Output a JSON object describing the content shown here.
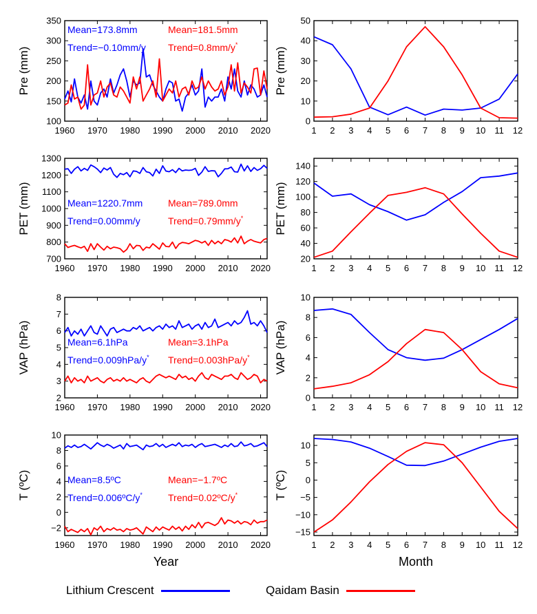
{
  "colors": {
    "lithium": "#0000ff",
    "qaidam": "#ff0000"
  },
  "legend": {
    "lithium": "Lithium Crescent",
    "qaidam": "Qaidam Basin"
  },
  "chart_data": [
    {
      "type": "line",
      "xlabel": "",
      "ylabel": "Pre (mm)",
      "xlim": [
        1960,
        2022
      ],
      "xticks": [
        1960,
        1970,
        1980,
        1990,
        2000,
        2010,
        2020
      ],
      "ylim": [
        100,
        350
      ],
      "yticks": [
        100,
        150,
        200,
        250,
        300,
        350
      ],
      "annotations": {
        "lithium_mean": "Mean=173.8mm",
        "lithium_trend": "Trend=−0.10mm/y",
        "qaidam_mean": "Mean=181.5mm",
        "qaidam_trend": "Trend=0.8mm/y",
        "qaidam_trend_sup": "*"
      },
      "series": [
        {
          "name": "Lithium Crescent",
          "start": 1960,
          "values": [
            155,
            175,
            148,
            205,
            160,
            145,
            165,
            130,
            200,
            150,
            140,
            170,
            180,
            160,
            205,
            170,
            190,
            215,
            230,
            200,
            160,
            200,
            190,
            195,
            280,
            210,
            215,
            190,
            175,
            160,
            150,
            180,
            200,
            195,
            150,
            155,
            125,
            160,
            170,
            190,
            165,
            175,
            230,
            135,
            160,
            150,
            160,
            160,
            180,
            150,
            210,
            180,
            230,
            175,
            160,
            200,
            165,
            190,
            180,
            160,
            165,
            190,
            160
          ]
        },
        {
          "name": "Qaidam Basin",
          "start": 1960,
          "values": [
            140,
            145,
            190,
            155,
            160,
            130,
            140,
            240,
            140,
            165,
            170,
            200,
            160,
            185,
            195,
            165,
            160,
            185,
            175,
            160,
            145,
            210,
            180,
            210,
            150,
            165,
            180,
            200,
            160,
            255,
            150,
            165,
            180,
            170,
            200,
            160,
            180,
            185,
            165,
            200,
            180,
            185,
            210,
            180,
            200,
            185,
            175,
            180,
            200,
            165,
            185,
            240,
            175,
            245,
            170,
            195,
            185,
            170,
            230,
            232,
            165,
            225,
            180
          ]
        }
      ]
    },
    {
      "type": "line",
      "xlabel": "",
      "ylabel": "Pre (mm)",
      "xlim": [
        1,
        12
      ],
      "xticks": [
        1,
        2,
        3,
        4,
        5,
        6,
        7,
        8,
        9,
        10,
        11,
        12
      ],
      "ylim": [
        0,
        50
      ],
      "yticks": [
        0,
        10,
        20,
        30,
        40,
        50
      ],
      "categories": [
        1,
        2,
        3,
        4,
        5,
        6,
        7,
        8,
        9,
        10,
        11,
        12
      ],
      "series": [
        {
          "name": "Lithium Crescent",
          "values": [
            42,
            38,
            26,
            7,
            3.2,
            7,
            3,
            6,
            5.5,
            6.5,
            11,
            23.5
          ]
        },
        {
          "name": "Qaidam Basin",
          "values": [
            2,
            2.2,
            3.5,
            6.5,
            20,
            37,
            47,
            37,
            23,
            6.5,
            1.7,
            1.5
          ]
        }
      ]
    },
    {
      "type": "line",
      "xlabel": "",
      "ylabel": "PET (mm)",
      "xlim": [
        1960,
        2022
      ],
      "xticks": [
        1960,
        1970,
        1980,
        1990,
        2000,
        2010,
        2020
      ],
      "ylim": [
        700,
        1300
      ],
      "yticks": [
        700,
        800,
        900,
        1000,
        1100,
        1200,
        1300
      ],
      "annotations": {
        "lithium_mean": "Mean=1220.7mm",
        "lithium_trend": "Trend=0.00mm/y",
        "qaidam_mean": "Mean=789.0mm",
        "qaidam_trend": "Trend=0.79mm/y",
        "qaidam_trend_sup": "*"
      },
      "series": [
        {
          "name": "Lithium Crescent",
          "start": 1960,
          "values": [
            1235,
            1238,
            1210,
            1235,
            1250,
            1225,
            1240,
            1228,
            1260,
            1250,
            1236,
            1215,
            1242,
            1230,
            1245,
            1205,
            1186,
            1210,
            1202,
            1215,
            1190,
            1225,
            1222,
            1210,
            1245,
            1220,
            1215,
            1195,
            1235,
            1210,
            1255,
            1224,
            1220,
            1232,
            1215,
            1240,
            1225,
            1230,
            1228,
            1230,
            1240,
            1198,
            1218,
            1250,
            1222,
            1226,
            1225,
            1190,
            1210,
            1237,
            1238,
            1248,
            1220,
            1218,
            1265,
            1225,
            1255,
            1222,
            1245,
            1228,
            1238,
            1258,
            1240
          ]
        },
        {
          "name": "Qaidam Basin",
          "start": 1960,
          "values": [
            790,
            768,
            775,
            780,
            772,
            765,
            775,
            745,
            790,
            755,
            790,
            770,
            752,
            775,
            760,
            770,
            766,
            760,
            740,
            756,
            790,
            760,
            780,
            778,
            750,
            770,
            765,
            790,
            774,
            758,
            795,
            774,
            772,
            800,
            762,
            788,
            798,
            795,
            790,
            800,
            810,
            805,
            795,
            805,
            780,
            810,
            790,
            805,
            790,
            815,
            810,
            800,
            825,
            795,
            835,
            790,
            805,
            815,
            805,
            800,
            795,
            815,
            822
          ]
        }
      ]
    },
    {
      "type": "line",
      "xlabel": "",
      "ylabel": "PET (mm)",
      "xlim": [
        1,
        12
      ],
      "xticks": [
        1,
        2,
        3,
        4,
        5,
        6,
        7,
        8,
        9,
        10,
        11,
        12
      ],
      "ylim": [
        20,
        150
      ],
      "yticks": [
        20,
        40,
        60,
        80,
        100,
        120,
        140
      ],
      "categories": [
        1,
        2,
        3,
        4,
        5,
        6,
        7,
        8,
        9,
        10,
        11,
        12
      ],
      "series": [
        {
          "name": "Lithium Crescent",
          "values": [
            118,
            101,
            104,
            90,
            81,
            70,
            77,
            93,
            107,
            125,
            127,
            131
          ]
        },
        {
          "name": "Qaidam Basin",
          "values": [
            22,
            30,
            55,
            79,
            102,
            106,
            112,
            104,
            78,
            53,
            30,
            22
          ]
        }
      ]
    },
    {
      "type": "line",
      "xlabel": "",
      "ylabel": "VAP (hPa)",
      "xlim": [
        1960,
        2022
      ],
      "xticks": [
        1960,
        1970,
        1980,
        1990,
        2000,
        2010,
        2020
      ],
      "ylim": [
        2,
        8
      ],
      "yticks": [
        2,
        3,
        4,
        5,
        6,
        7,
        8
      ],
      "annotations": {
        "lithium_mean": "Mean=6.1hPa",
        "lithium_trend": "Trend=0.009hPa/y",
        "lithium_trend_sup": "*",
        "qaidam_mean": "Mean=3.1hPa",
        "qaidam_trend": "Trend=0.003hPa/y",
        "qaidam_trend_sup": "*"
      },
      "series": [
        {
          "name": "Lithium Crescent",
          "start": 1960,
          "values": [
            5.9,
            6.2,
            5.7,
            6.0,
            5.8,
            6.1,
            5.7,
            6.0,
            6.3,
            5.9,
            5.8,
            6.3,
            6.0,
            5.7,
            6.1,
            6.2,
            5.9,
            6.0,
            6.1,
            6.0,
            6.0,
            6.2,
            6.1,
            6.3,
            6.0,
            6.1,
            6.2,
            6.0,
            6.2,
            6.3,
            6.1,
            6.4,
            6.2,
            6.3,
            6.1,
            6.6,
            6.2,
            6.3,
            6.4,
            6.1,
            6.3,
            6.4,
            6.1,
            6.5,
            6.2,
            6.3,
            6.7,
            6.2,
            6.3,
            6.4,
            6.5,
            6.3,
            6.6,
            6.4,
            6.5,
            6.8,
            7.2,
            6.4,
            6.5,
            6.3,
            6.6,
            6.3,
            5.9
          ]
        },
        {
          "name": "Qaidam Basin",
          "start": 1960,
          "values": [
            3.0,
            3.3,
            2.9,
            3.2,
            3.0,
            3.1,
            2.9,
            3.3,
            3.0,
            3.1,
            3.2,
            3.0,
            2.9,
            3.1,
            3.2,
            3.0,
            3.1,
            3.0,
            3.2,
            3.0,
            3.1,
            3.0,
            2.9,
            3.1,
            3.2,
            3.0,
            2.9,
            3.1,
            3.3,
            3.4,
            3.3,
            3.2,
            3.3,
            3.2,
            3.1,
            3.4,
            3.2,
            3.3,
            3.1,
            3.2,
            3.0,
            3.3,
            3.5,
            3.2,
            3.1,
            3.4,
            3.3,
            3.2,
            3.1,
            3.3,
            3.3,
            3.4,
            3.2,
            3.1,
            3.5,
            3.3,
            3.1,
            3.2,
            3.4,
            3.3,
            2.9,
            3.1,
            3.0
          ]
        }
      ]
    },
    {
      "type": "line",
      "xlabel": "",
      "ylabel": "VAP (hPa)",
      "xlim": [
        1,
        12
      ],
      "xticks": [
        1,
        2,
        3,
        4,
        5,
        6,
        7,
        8,
        9,
        10,
        11,
        12
      ],
      "ylim": [
        0,
        10
      ],
      "yticks": [
        0,
        2,
        4,
        6,
        8,
        10
      ],
      "categories": [
        1,
        2,
        3,
        4,
        5,
        6,
        7,
        8,
        9,
        10,
        11,
        12
      ],
      "series": [
        {
          "name": "Lithium Crescent",
          "values": [
            8.7,
            8.85,
            8.3,
            6.5,
            4.8,
            4.0,
            3.75,
            3.95,
            4.8,
            5.8,
            6.8,
            7.9
          ]
        },
        {
          "name": "Qaidam Basin",
          "values": [
            0.9,
            1.15,
            1.5,
            2.3,
            3.6,
            5.4,
            6.8,
            6.5,
            4.8,
            2.6,
            1.4,
            1.0
          ]
        }
      ]
    },
    {
      "type": "line",
      "xlabel": "Year",
      "ylabel": "T (ºC)",
      "xlim": [
        1960,
        2022
      ],
      "xticks": [
        1960,
        1970,
        1980,
        1990,
        2000,
        2010,
        2020
      ],
      "ylim": [
        -3,
        10
      ],
      "yticks": [
        -2,
        0,
        2,
        4,
        6,
        8,
        10
      ],
      "annotations": {
        "lithium_mean": "Mean=8.5ºC",
        "lithium_trend": "Trend=0.006ºC/y",
        "lithium_trend_sup": "*",
        "qaidam_mean": "Mean=−1.7ºC",
        "qaidam_trend": "Trend=0.02ºC/y",
        "qaidam_trend_sup": "*"
      },
      "series": [
        {
          "name": "Lithium Crescent",
          "start": 1960,
          "values": [
            8.3,
            8.6,
            8.4,
            8.7,
            8.4,
            8.5,
            8.8,
            8.5,
            8.2,
            8.6,
            9.0,
            8.7,
            8.5,
            8.8,
            8.6,
            8.3,
            8.5,
            8.7,
            8.2,
            8.9,
            8.5,
            8.6,
            8.7,
            8.4,
            8.1,
            8.7,
            8.5,
            8.6,
            8.9,
            8.5,
            8.8,
            8.4,
            8.6,
            8.8,
            8.6,
            9.0,
            8.5,
            8.7,
            8.6,
            8.8,
            8.4,
            8.7,
            8.9,
            8.5,
            8.6,
            8.7,
            8.8,
            8.6,
            8.4,
            8.7,
            8.5,
            8.9,
            8.5,
            8.6,
            9.1,
            8.6,
            8.7,
            8.9,
            8.5,
            8.6,
            8.8,
            9.0,
            8.5
          ]
        },
        {
          "name": "Qaidam Basin",
          "start": 1960,
          "values": [
            -1.8,
            -2.5,
            -2.2,
            -2.4,
            -2.6,
            -2.2,
            -2.5,
            -2.1,
            -2.9,
            -2.0,
            -2.3,
            -1.8,
            -2.5,
            -2.1,
            -2.3,
            -2.0,
            -2.3,
            -2.2,
            -2.5,
            -2.1,
            -2.3,
            -2.2,
            -2.0,
            -2.4,
            -2.8,
            -1.9,
            -2.2,
            -2.5,
            -1.9,
            -2.3,
            -1.9,
            -2.1,
            -2.3,
            -1.8,
            -2.2,
            -1.9,
            -2.4,
            -1.8,
            -2.2,
            -1.6,
            -2.0,
            -1.3,
            -2.0,
            -1.4,
            -1.3,
            -1.5,
            -1.7,
            -1.4,
            -0.7,
            -1.5,
            -1.0,
            -1.1,
            -1.4,
            -1.1,
            -1.5,
            -1.2,
            -1.3,
            -1.6,
            -1.0,
            -1.4,
            -1.2,
            -1.2,
            -1.0
          ]
        }
      ]
    },
    {
      "type": "line",
      "xlabel": "Month",
      "ylabel": "T (ºC)",
      "xlim": [
        1,
        12
      ],
      "xticks": [
        1,
        2,
        3,
        4,
        5,
        6,
        7,
        8,
        9,
        10,
        11,
        12
      ],
      "ylim": [
        -16,
        13
      ],
      "yticks": [
        -15,
        -10,
        -5,
        0,
        5,
        10
      ],
      "categories": [
        1,
        2,
        3,
        4,
        5,
        6,
        7,
        8,
        9,
        10,
        11,
        12
      ],
      "series": [
        {
          "name": "Lithium Crescent",
          "values": [
            12.0,
            11.7,
            11.0,
            9.2,
            6.8,
            4.3,
            4.2,
            5.5,
            7.5,
            9.5,
            11.2,
            12.0
          ]
        },
        {
          "name": "Qaidam Basin",
          "values": [
            -15.0,
            -11.5,
            -6.3,
            -0.5,
            4.5,
            8.3,
            10.8,
            10.2,
            5.0,
            -2.0,
            -9.0,
            -14.0
          ]
        }
      ]
    }
  ]
}
